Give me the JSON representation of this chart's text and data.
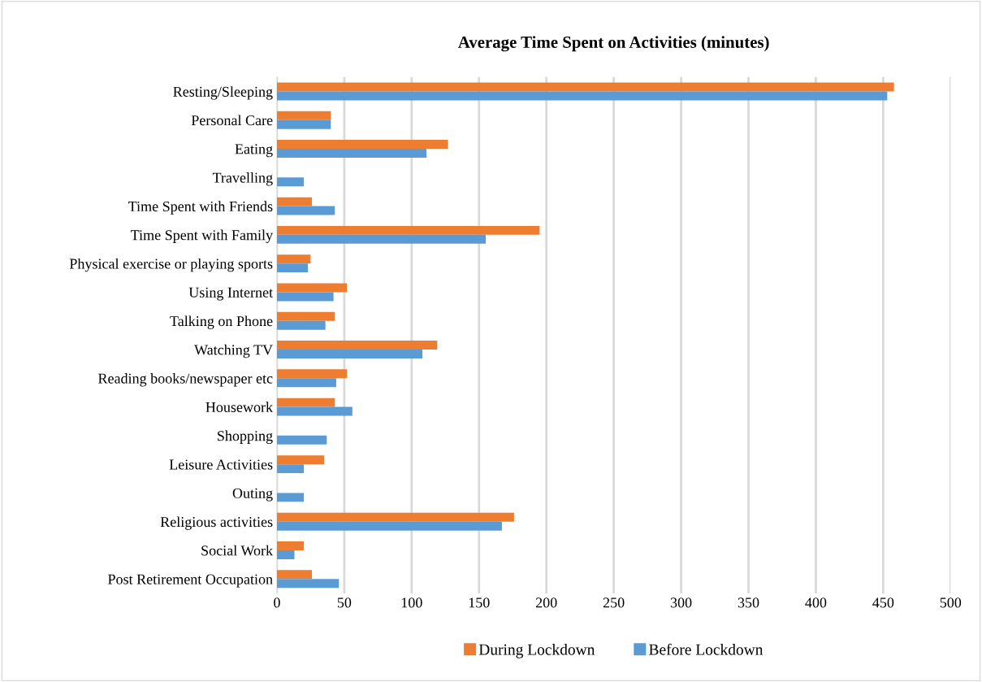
{
  "chart_data": {
    "type": "bar",
    "orientation": "horizontal",
    "title": "Average Time Spent on Activities (minutes)",
    "categories": [
      "Resting/Sleeping",
      "Personal Care",
      "Eating",
      "Travelling",
      "Time Spent with Friends",
      "Time Spent with Family",
      "Physical exercise or playing sports",
      "Using Internet",
      "Talking on Phone",
      "Watching TV",
      "Reading books/newspaper etc",
      "Housework",
      "Shopping",
      "Leisure Activities",
      "Outing",
      "Religious activities",
      "Social Work",
      "Post Retirement Occupation"
    ],
    "series": [
      {
        "name": "During Lockdown",
        "color": "#ed7d31",
        "values": [
          458,
          40,
          127,
          null,
          26,
          195,
          25,
          52,
          43,
          119,
          52,
          43,
          null,
          35,
          null,
          176,
          20,
          26
        ]
      },
      {
        "name": "Before Lockdown",
        "color": "#5b9bd5",
        "values": [
          453,
          40,
          111,
          20,
          43,
          155,
          23,
          42,
          36,
          108,
          44,
          56,
          37,
          20,
          20,
          167,
          13,
          46
        ]
      }
    ],
    "xlim": [
      0,
      500
    ],
    "xticks": [
      0,
      50,
      100,
      150,
      200,
      250,
      300,
      350,
      400,
      450,
      500
    ],
    "grid": "x",
    "legend": "bottom"
  }
}
